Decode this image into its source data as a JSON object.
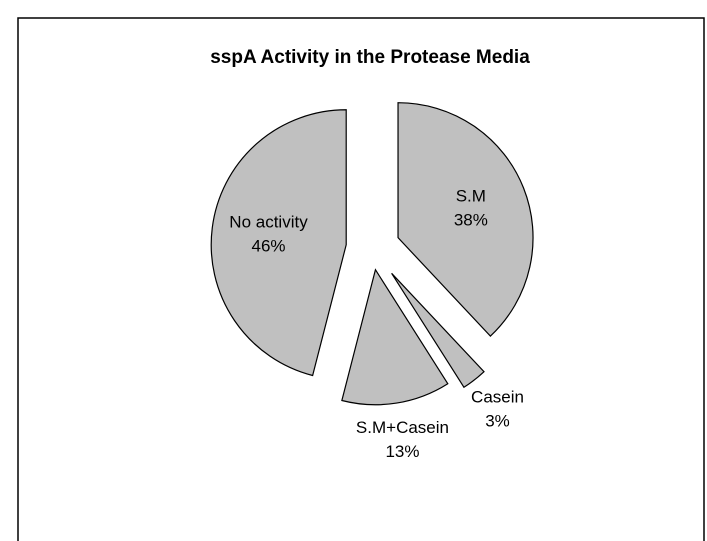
{
  "chart_data": {
    "type": "pie",
    "title": "sspA Activity in the Protease Media",
    "categories": [
      "S.M",
      "Casein",
      "S.M+Casein",
      "No activity"
    ],
    "values": [
      38,
      3,
      13,
      46
    ],
    "value_labels": [
      "38%",
      "3%",
      "13%",
      "46%"
    ],
    "color": "#c0c0c0"
  }
}
